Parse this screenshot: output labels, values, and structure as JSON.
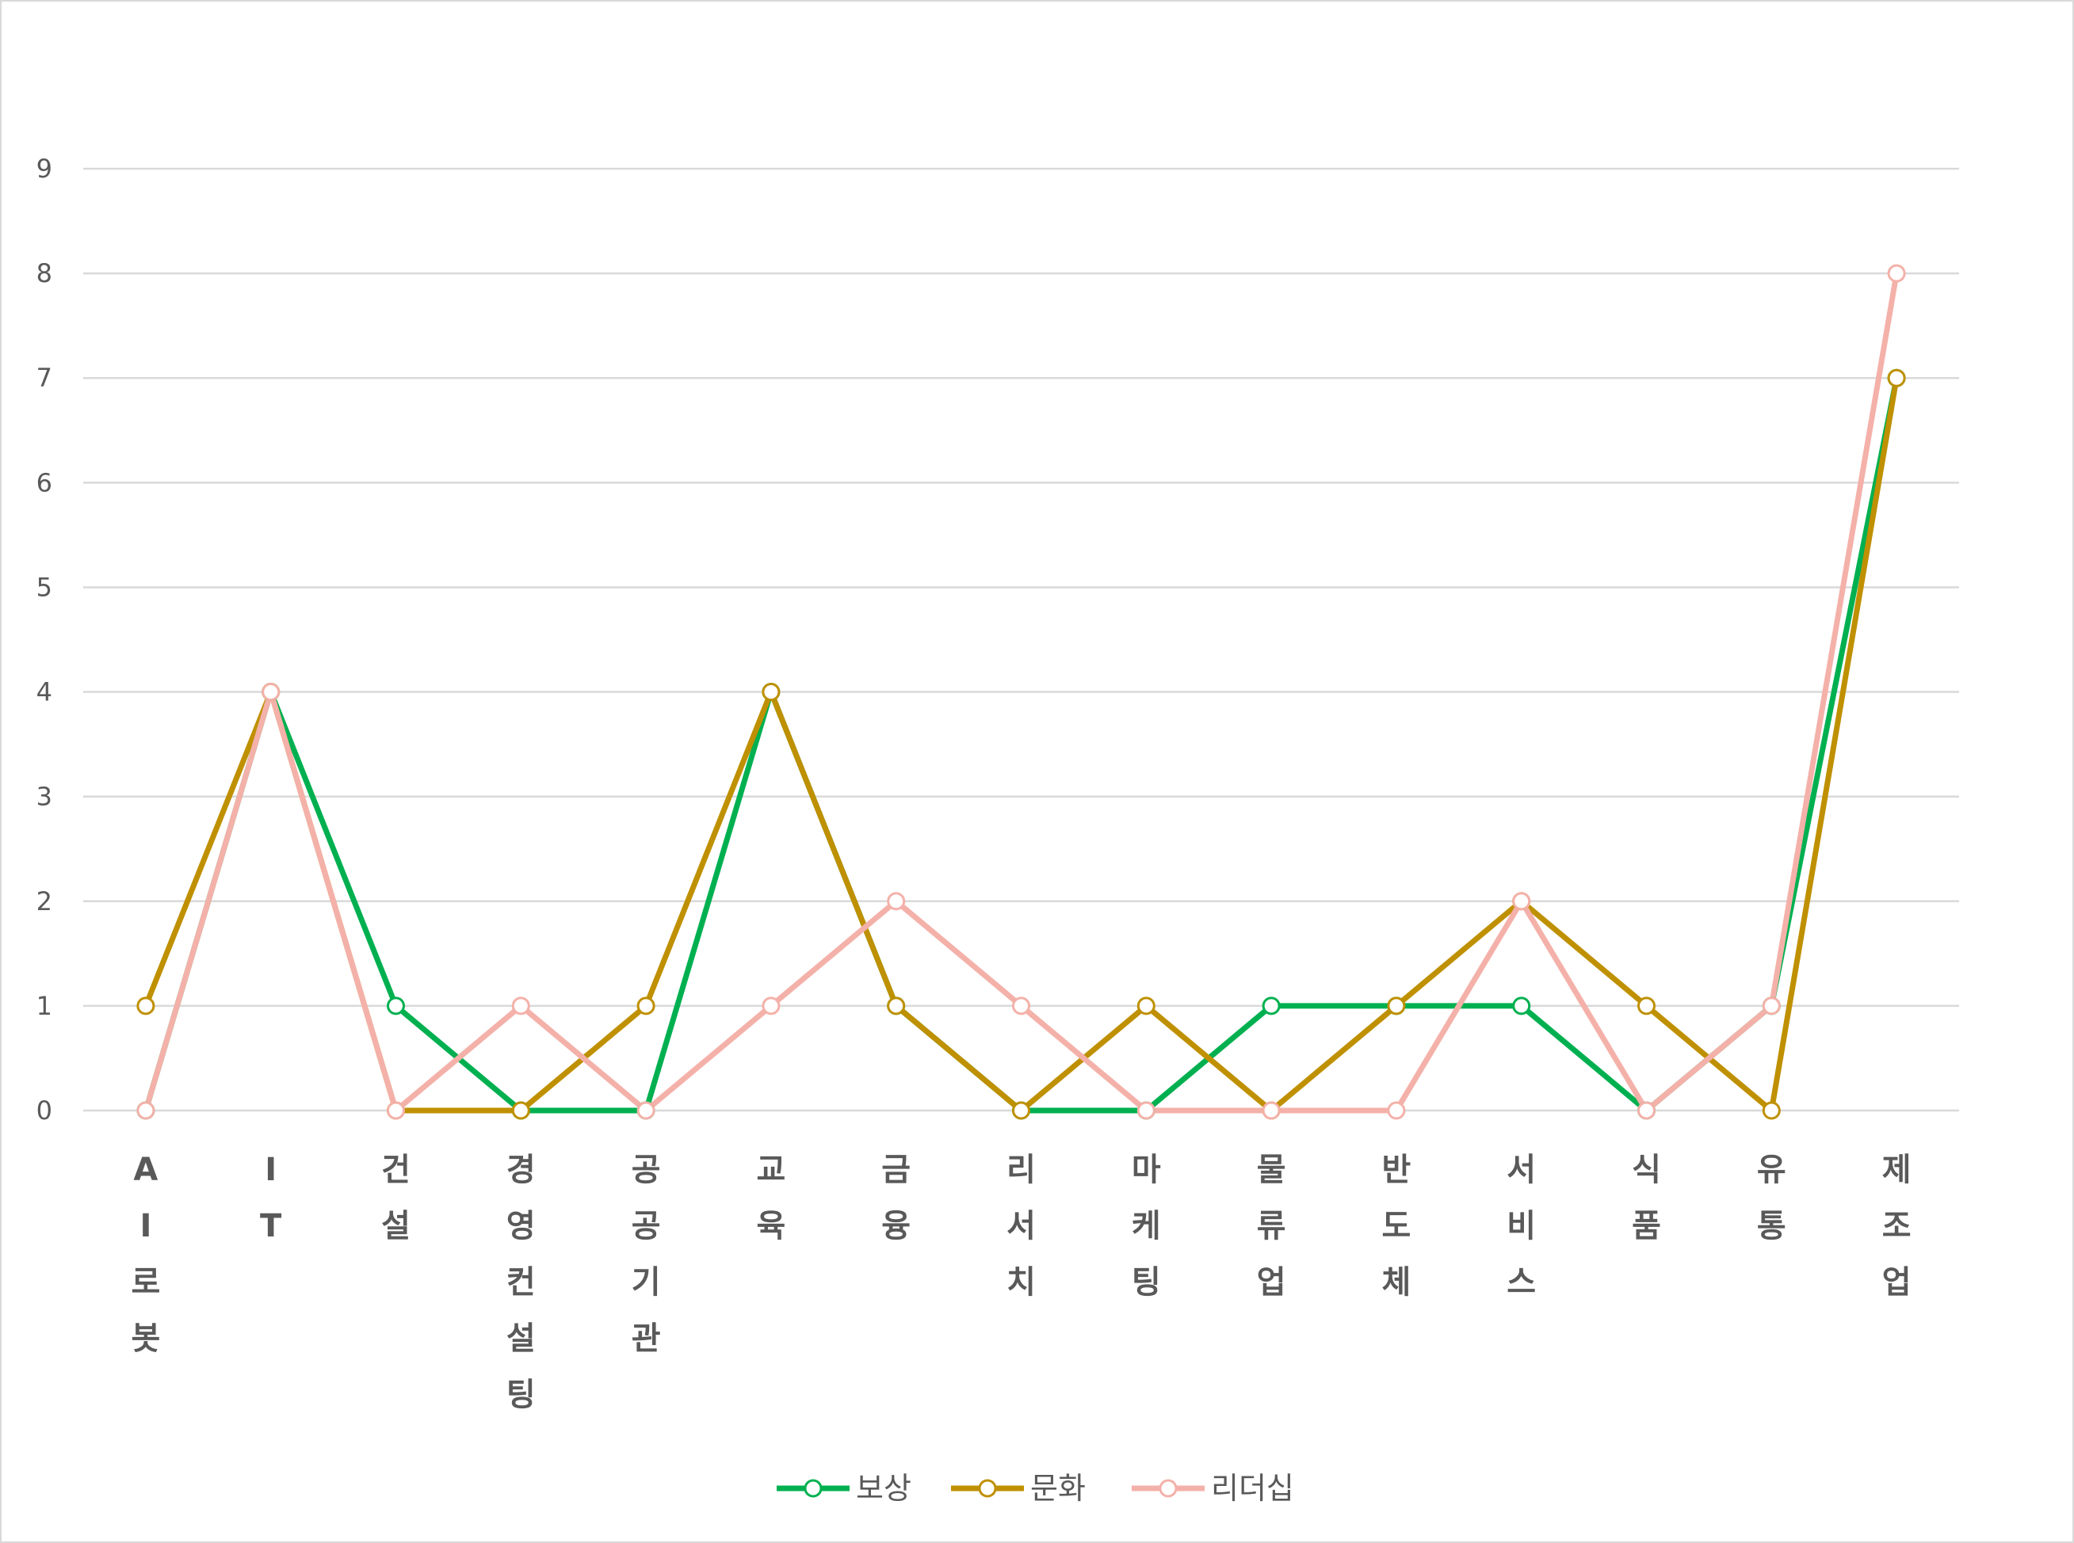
{
  "chart_data": {
    "type": "line",
    "title": "",
    "xlabel": "",
    "ylabel": "",
    "categories": [
      "AI로봇",
      "IT",
      "건설",
      "경영컨설팅",
      "공공기관",
      "교육",
      "금융",
      "리서치",
      "마케팅",
      "물류업",
      "반도체",
      "서비스",
      "식품",
      "유통",
      "제조업"
    ],
    "ylim": [
      0,
      9
    ],
    "yticks": [
      "0",
      "1",
      "2",
      "3",
      "4",
      "5",
      "6",
      "7",
      "8",
      "9"
    ],
    "grid": true,
    "legend_position": "bottom",
    "series": [
      {
        "name": "보상",
        "color": "#00b050",
        "values": [
          0,
          4,
          1,
          0,
          0,
          4,
          1,
          0,
          0,
          1,
          1,
          1,
          0,
          1,
          7
        ]
      },
      {
        "name": "문화",
        "color": "#bf9000",
        "values": [
          1,
          4,
          0,
          0,
          1,
          4,
          1,
          0,
          1,
          0,
          1,
          2,
          1,
          0,
          7
        ]
      },
      {
        "name": "리더십",
        "color": "#f4b1a9",
        "values": [
          0,
          4,
          0,
          1,
          0,
          1,
          2,
          1,
          0,
          0,
          0,
          2,
          0,
          1,
          8
        ]
      }
    ]
  }
}
